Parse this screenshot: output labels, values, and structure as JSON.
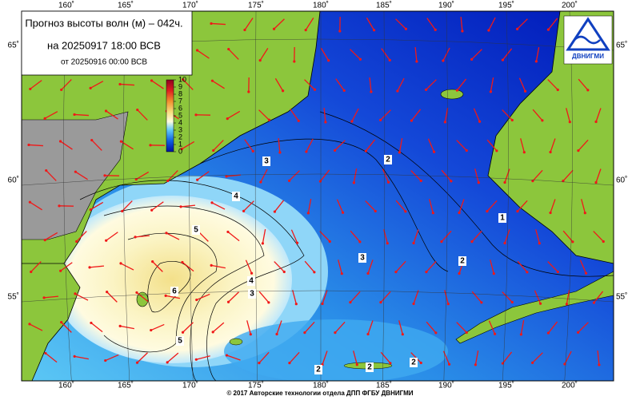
{
  "header": {
    "title": "Прогноз высоты волн (м) – 042ч.",
    "valid": "на 20250917 18:00 ВСВ",
    "issued": "от 20250916 00:00 ВСВ"
  },
  "legend": {
    "ticks": [
      0,
      1,
      2,
      3,
      4,
      5,
      6,
      7,
      8,
      9,
      10
    ]
  },
  "lon_labels": [
    "160˚",
    "165˚",
    "170˚",
    "175˚",
    "180˚",
    "185˚",
    "190˚",
    "195˚",
    "200˚"
  ],
  "lat_labels": [
    "65˚",
    "60˚",
    "55˚"
  ],
  "contour_labels": [
    3,
    2,
    4,
    5,
    6,
    4,
    3,
    5,
    3,
    2,
    1,
    2,
    2,
    2
  ],
  "logo": "ДВНИГМИ",
  "footer": "© 2017 Авторские технологии отдела ДПП ФГБУ ДВНИГМИ"
}
